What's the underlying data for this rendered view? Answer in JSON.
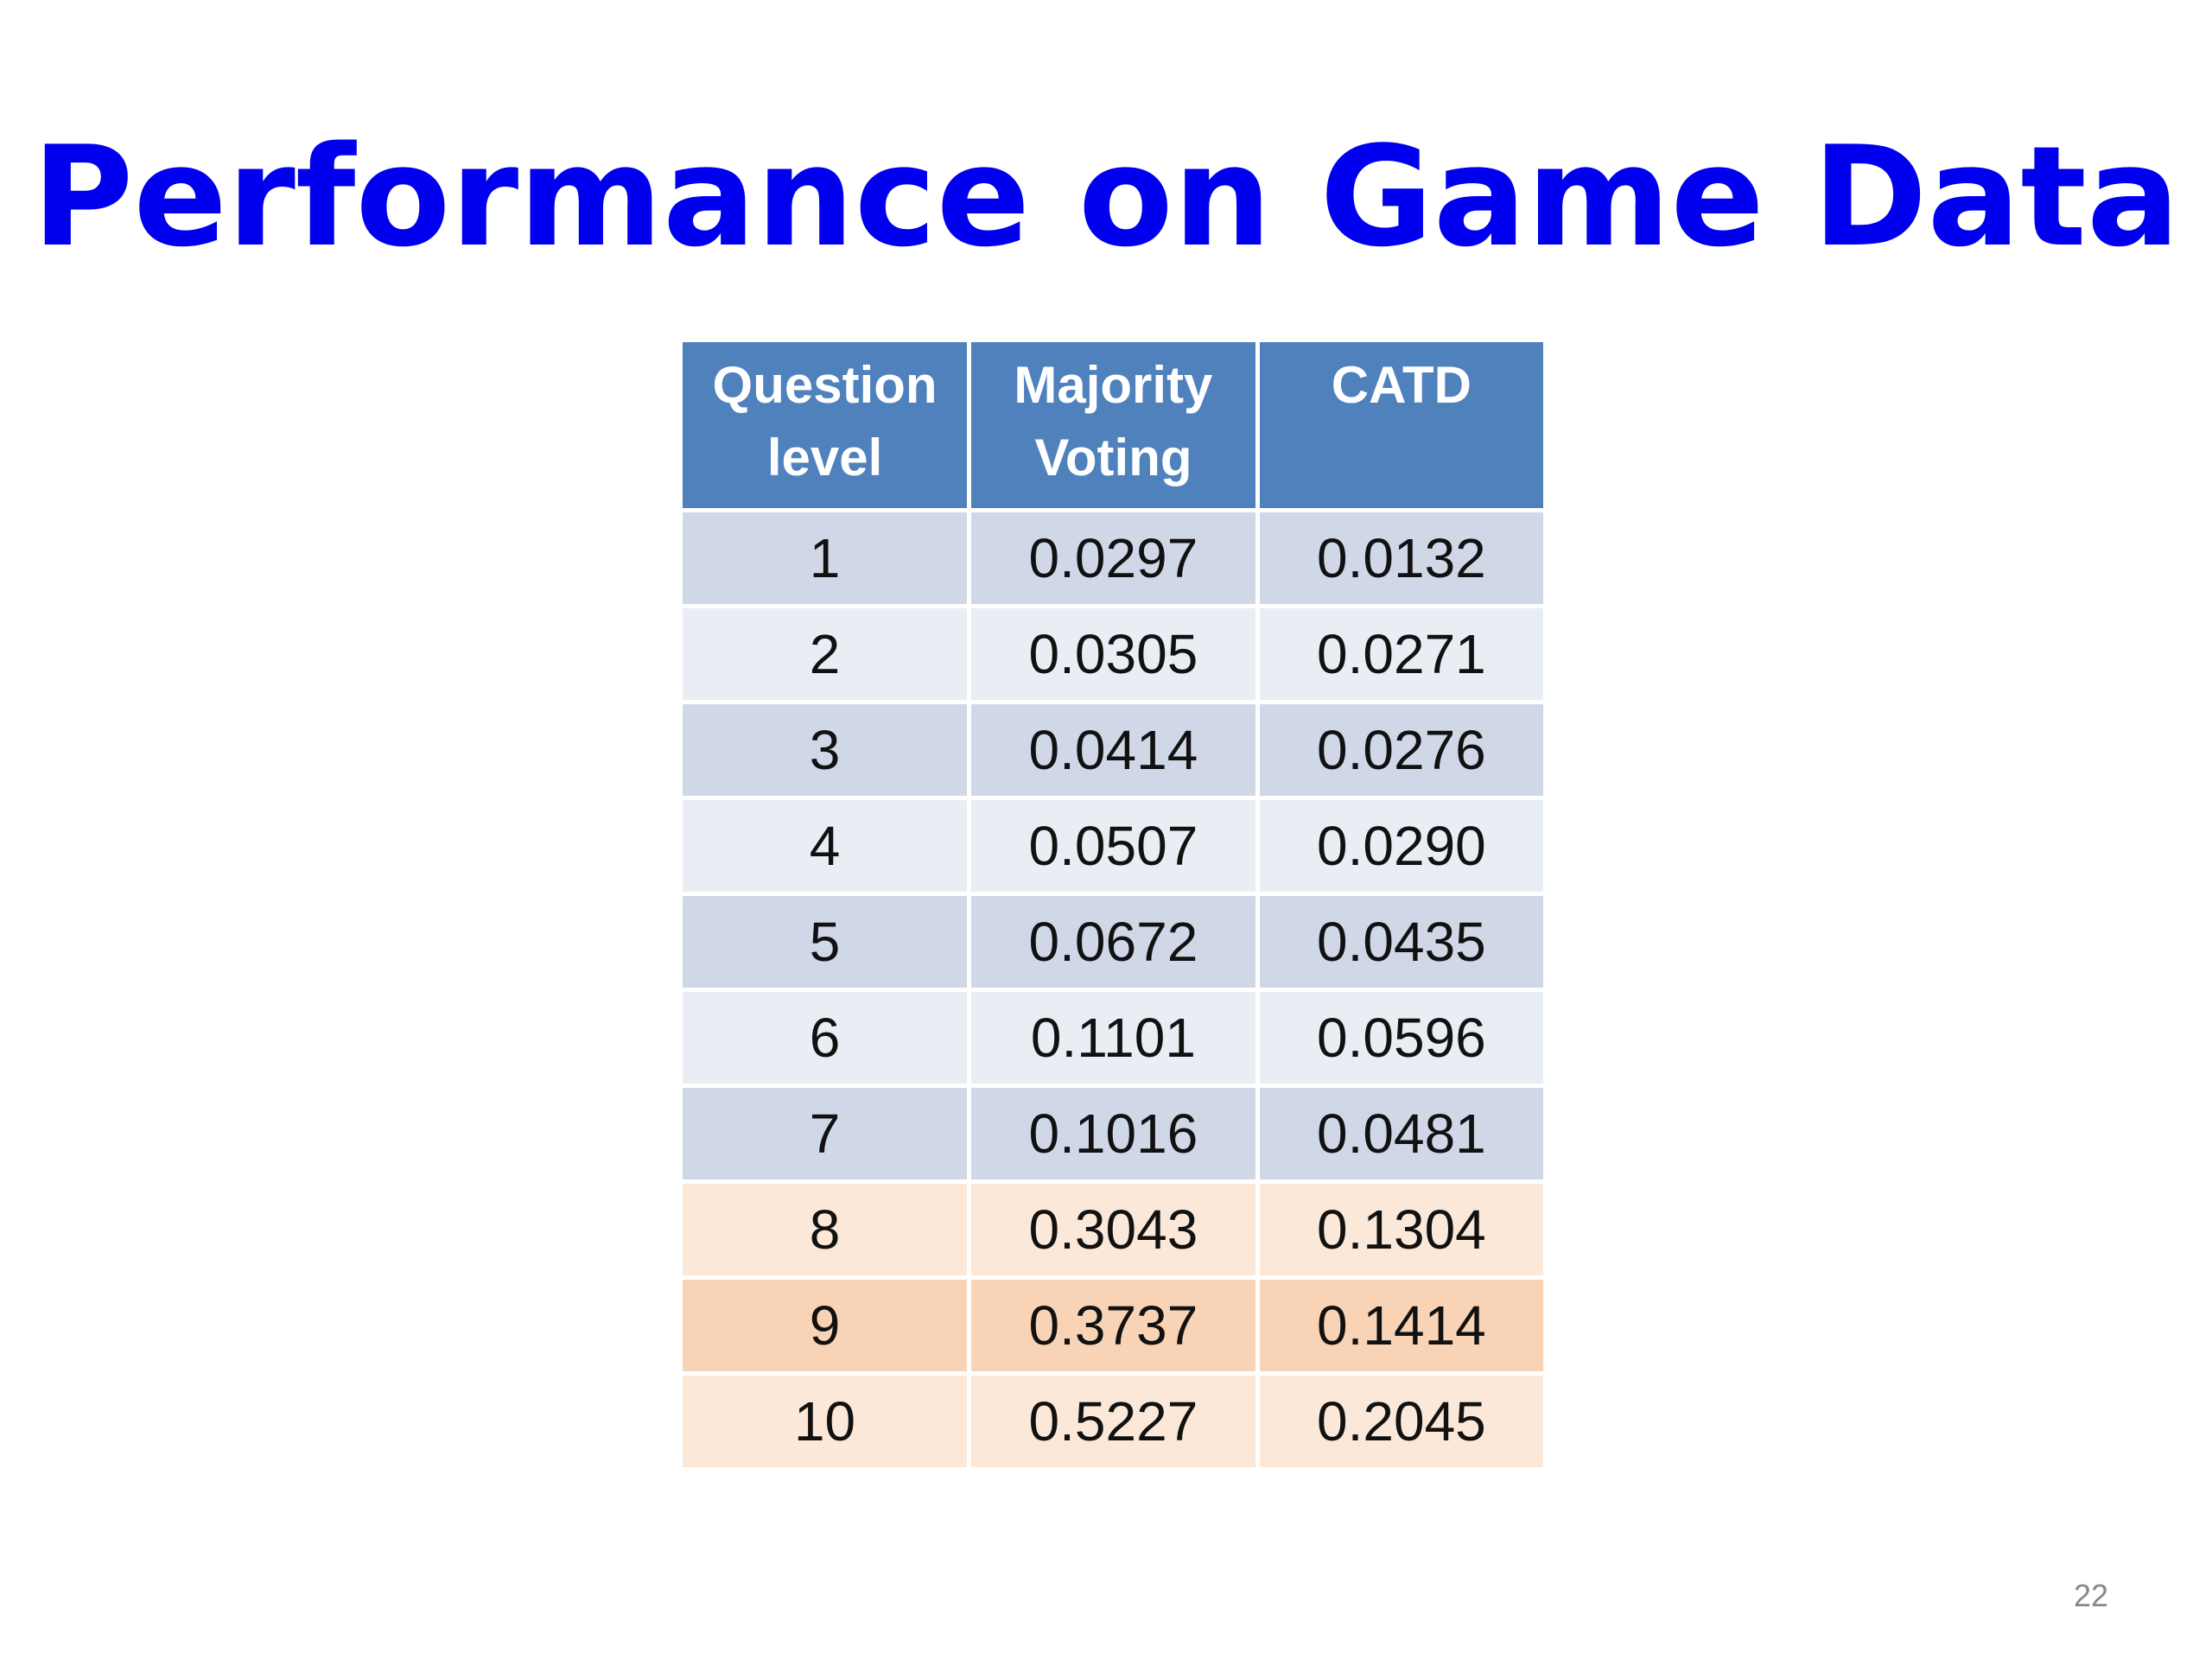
{
  "title": "Performance on Game Data",
  "table": {
    "headers": [
      [
        "Question",
        "level"
      ],
      [
        "Majority",
        "Voting"
      ],
      [
        "CATD"
      ]
    ],
    "rows": [
      {
        "level": "1",
        "majority_voting": "0.0297",
        "catd": "0.0132",
        "highlight": "blue"
      },
      {
        "level": "2",
        "majority_voting": "0.0305",
        "catd": "0.0271",
        "highlight": "blue"
      },
      {
        "level": "3",
        "majority_voting": "0.0414",
        "catd": "0.0276",
        "highlight": "blue"
      },
      {
        "level": "4",
        "majority_voting": "0.0507",
        "catd": "0.0290",
        "highlight": "blue"
      },
      {
        "level": "5",
        "majority_voting": "0.0672",
        "catd": "0.0435",
        "highlight": "blue"
      },
      {
        "level": "6",
        "majority_voting": "0.1101",
        "catd": "0.0596",
        "highlight": "blue"
      },
      {
        "level": "7",
        "majority_voting": "0.1016",
        "catd": "0.0481",
        "highlight": "blue"
      },
      {
        "level": "8",
        "majority_voting": "0.3043",
        "catd": "0.1304",
        "highlight": "orange"
      },
      {
        "level": "9",
        "majority_voting": "0.3737",
        "catd": "0.1414",
        "highlight": "orange"
      },
      {
        "level": "10",
        "majority_voting": "0.5227",
        "catd": "0.2045",
        "highlight": "orange"
      }
    ]
  },
  "page_number": "22",
  "colors": {
    "title": "#0000ee",
    "header_bg": "#4f81bd",
    "row_blue_dark": "#d0d8e8",
    "row_blue_light": "#e9edf4",
    "row_orange_light": "#fbe8d8",
    "row_orange_dark": "#f8d3b5"
  }
}
